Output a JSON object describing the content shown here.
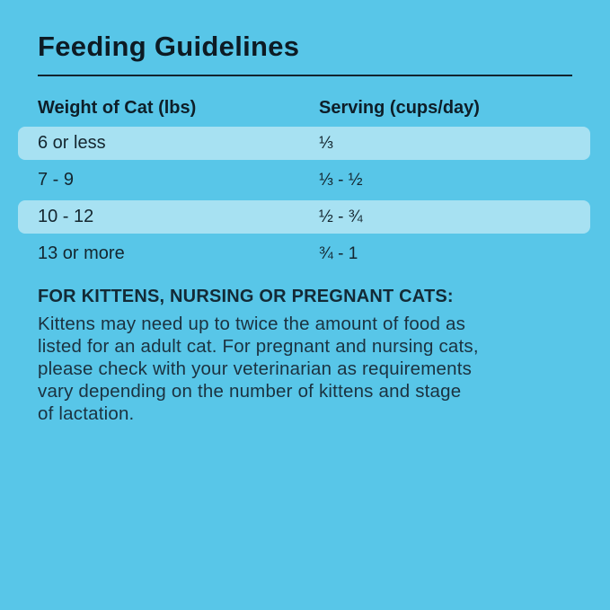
{
  "title": "Feeding Guidelines",
  "colors": {
    "background": "#58C6E8",
    "row_stripe": "#A7E1F2",
    "title_text": "#0D1B24",
    "body_text": "#1B3240",
    "rule": "#12242E"
  },
  "table": {
    "headers": {
      "weight": "Weight of Cat (lbs)",
      "serving": "Serving (cups/day)"
    },
    "rows": [
      {
        "weight": "6 or less",
        "serving": "⅓",
        "striped": true
      },
      {
        "weight": "7 - 9",
        "serving": "⅓ - ½",
        "striped": false
      },
      {
        "weight": "10 - 12",
        "serving": "½ - ¾",
        "striped": true
      },
      {
        "weight": "13 or more",
        "serving": "¾ - 1",
        "striped": false
      }
    ]
  },
  "note": {
    "heading": "FOR KITTENS, NURSING OR PREGNANT CATS:",
    "body": "Kittens may need up to twice the amount of food as\nlisted for an adult cat. For pregnant and nursing cats,\nplease check with your veterinarian as requirements\nvary depending on the number of kittens and stage\nof lactation."
  }
}
